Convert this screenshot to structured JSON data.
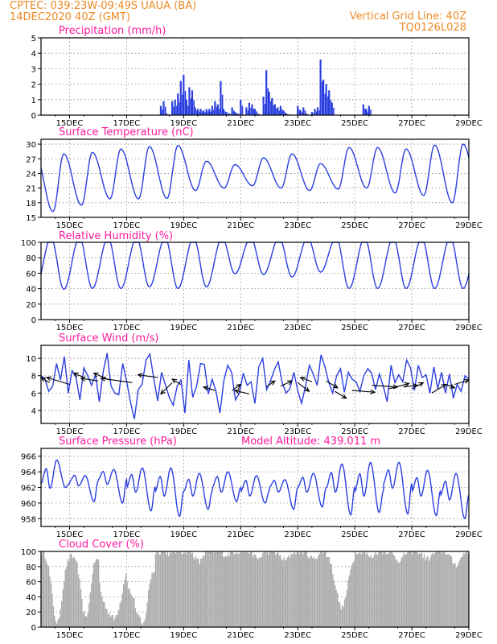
{
  "header": {
    "line1_left": "CPTEC:   039:23W-09:49S  UAUA (BA)",
    "line2_left": "14DEC2020 40Z (GMT)",
    "line1_right": "Vertical Grid Line: 40Z",
    "line2_right": "TQ0126L028"
  },
  "colors": {
    "line": "#2b3fe0",
    "bar": "#2b3fe0",
    "cloud": "#aaaaaa",
    "header": "#ee8a25",
    "title": "#ff1a9e"
  },
  "x_tick_labels": [
    "15DEC",
    "17DEC",
    "19DEC",
    "21DEC",
    "23DEC",
    "25DEC",
    "27DEC",
    "29DEC"
  ],
  "chart_data": [
    {
      "id": "precip",
      "type": "bar",
      "title": "Precipitation (mm/h)",
      "xrange": [
        14.0,
        29.0
      ],
      "ylim": [
        0,
        5
      ],
      "yticks": [
        "0",
        "1",
        "2",
        "3",
        "4",
        "5"
      ],
      "grid": true,
      "x": [
        18.2,
        18.3,
        18.4,
        18.6,
        18.7,
        18.8,
        18.9,
        19.0,
        19.1,
        19.2,
        19.3,
        19.4,
        19.5,
        19.6,
        19.7,
        19.8,
        19.9,
        20.0,
        20.1,
        20.2,
        20.3,
        20.4,
        20.5,
        20.6,
        20.7,
        20.8,
        20.9,
        21.0,
        21.2,
        21.3,
        21.4,
        21.5,
        21.6,
        21.8,
        21.9,
        22.0,
        22.1,
        22.2,
        22.3,
        22.4,
        22.5,
        22.6,
        23.0,
        23.1,
        23.2,
        23.3,
        23.5,
        23.6,
        23.7,
        23.8,
        23.9,
        24.0,
        24.1,
        24.2,
        25.3,
        25.4,
        25.5
      ],
      "values": [
        0.6,
        0.9,
        0.1,
        0.9,
        1.0,
        1.4,
        2.2,
        2.6,
        1.0,
        1.8,
        1.6,
        0.5,
        0.4,
        0.4,
        0.3,
        0.4,
        0.4,
        0.6,
        0.9,
        0.7,
        2.2,
        0.4,
        0.2,
        0.1,
        0.5,
        0.2,
        0.1,
        1.0,
        0.5,
        0.8,
        0.7,
        0.4,
        0.1,
        1.2,
        2.9,
        1.5,
        1.1,
        0.7,
        0.5,
        0.6,
        0.3,
        0.1,
        0.6,
        0.3,
        0.5,
        0.1,
        0.2,
        0.4,
        0.5,
        3.6,
        2.3,
        2.0,
        1.6,
        0.8,
        0.7,
        0.4,
        0.6
      ]
    },
    {
      "id": "temp",
      "type": "line",
      "title": "Surface Temperature (nC)",
      "xrange": [
        14.0,
        29.0
      ],
      "ylim": [
        15,
        31
      ],
      "yticks": [
        "15",
        "18",
        "21",
        "24",
        "27",
        "30"
      ],
      "grid": true,
      "max_day": [
        28.0,
        28.3,
        29.0,
        29.5,
        29.7,
        26.5,
        25.8,
        27.2,
        28.0,
        26.0,
        29.3,
        29.3,
        29.0,
        29.8,
        30.0
      ],
      "min_day": [
        16.2,
        17.5,
        18.8,
        18.8,
        18.9,
        20.5,
        21.0,
        21.5,
        21.0,
        20.5,
        20.8,
        21.0,
        20.0,
        19.5,
        18.0
      ]
    },
    {
      "id": "rh",
      "type": "line",
      "title": "Relative Humidity (%)",
      "xrange": [
        14.0,
        29.0
      ],
      "ylim": [
        0,
        100
      ],
      "yticks": [
        "0",
        "20",
        "40",
        "60",
        "80",
        "100"
      ],
      "grid": true,
      "min_day": [
        37,
        38,
        38,
        40,
        38,
        40,
        56,
        55,
        52,
        58,
        38,
        38,
        38,
        38,
        38
      ],
      "max_day": [
        100,
        100,
        100,
        100,
        100,
        100,
        100,
        100,
        100,
        100,
        100,
        100,
        100,
        100,
        100
      ]
    },
    {
      "id": "wind",
      "type": "line",
      "title": "Surface Wind (m/s)",
      "xrange": [
        14.0,
        29.0
      ],
      "ylim": [
        2.5,
        11.5
      ],
      "yticks": [
        "4",
        "6",
        "8",
        "10"
      ],
      "grid": true,
      "speed": [
        8.0,
        7.6,
        6.2,
        6.8,
        9.4,
        7.5,
        10.2,
        6.0,
        8.6,
        7.8,
        5.2,
        8.9,
        8.0,
        6.9,
        8.1,
        5.0,
        8.5,
        10.6,
        6.8,
        6.0,
        5.8,
        9.4,
        7.4,
        5.0,
        3.0,
        6.4,
        7.0,
        9.8,
        10.5,
        7.6,
        5.1,
        8.4,
        6.9,
        5.5,
        4.6,
        6.8,
        7.5,
        3.7,
        9.8,
        5.5,
        6.8,
        9.4,
        9.3,
        5.9,
        7.6,
        6.2,
        3.7,
        7.4,
        9.2,
        8.4,
        5.2,
        6.0,
        8.3,
        6.9,
        7.3,
        4.8,
        9.0,
        10.0,
        6.4,
        7.4,
        8.7,
        9.6,
        7.2,
        6.0,
        6.5,
        8.4,
        6.3,
        4.8,
        6.8,
        9.2,
        8.2,
        6.9,
        10.4,
        9.0,
        7.2,
        6.0,
        8.0,
        8.8,
        6.1,
        8.4,
        7.6,
        7.3,
        6.2,
        8.0,
        8.8,
        8.3,
        6.4,
        8.2,
        6.8,
        5.0,
        9.2,
        7.2,
        8.1,
        7.3,
        9.8,
        8.9,
        6.3,
        9.2,
        7.8,
        8.1,
        6.0,
        9.0,
        6.5,
        8.4,
        6.0,
        8.2,
        5.4,
        7.0,
        6.2,
        8.0,
        7.6
      ],
      "arrows": [
        {
          "x": 14.3,
          "y": 7.2,
          "dx": -0.3,
          "dy": 0.6
        },
        {
          "x": 15.0,
          "y": 7.0,
          "dx": -0.8,
          "dy": 0.8
        },
        {
          "x": 15.5,
          "y": 7.8,
          "dx": -0.35,
          "dy": 0.5
        },
        {
          "x": 16.0,
          "y": 7.4,
          "dx": -0.6,
          "dy": 0.3
        },
        {
          "x": 16.4,
          "y": 7.5,
          "dx": -0.55,
          "dy": 0.8
        },
        {
          "x": 17.2,
          "y": 7.2,
          "dx": -1.1,
          "dy": 0.5
        },
        {
          "x": 18.1,
          "y": 7.8,
          "dx": -0.7,
          "dy": 0.3
        },
        {
          "x": 18.6,
          "y": 7.2,
          "dx": -0.4,
          "dy": -1.3
        },
        {
          "x": 18.9,
          "y": 7.0,
          "dx": -0.3,
          "dy": 0.6
        },
        {
          "x": 20.1,
          "y": 6.3,
          "dx": -0.4,
          "dy": 0.4
        },
        {
          "x": 20.7,
          "y": 6.3,
          "dx": 0.3,
          "dy": 0.7
        },
        {
          "x": 21.3,
          "y": 5.9,
          "dx": -0.5,
          "dy": 0.4
        },
        {
          "x": 21.9,
          "y": 6.7,
          "dx": 0.3,
          "dy": 0.7
        },
        {
          "x": 22.4,
          "y": 6.8,
          "dx": 0.4,
          "dy": 0.6
        },
        {
          "x": 23.0,
          "y": 7.2,
          "dx": 0.4,
          "dy": -1.0
        },
        {
          "x": 23.5,
          "y": 7.3,
          "dx": -0.4,
          "dy": 0.5
        },
        {
          "x": 24.0,
          "y": 7.4,
          "dx": 0.4,
          "dy": -0.8
        },
        {
          "x": 24.3,
          "y": 6.2,
          "dx": 0.4,
          "dy": -0.8
        },
        {
          "x": 24.9,
          "y": 6.3,
          "dx": 0.8,
          "dy": -0.2
        },
        {
          "x": 25.6,
          "y": 6.9,
          "dx": 0.9,
          "dy": -0.2
        },
        {
          "x": 26.2,
          "y": 6.5,
          "dx": 0.7,
          "dy": 0.6
        },
        {
          "x": 26.7,
          "y": 6.7,
          "dx": 0.5,
          "dy": 0.2
        },
        {
          "x": 27.0,
          "y": 6.5,
          "dx": 0.4,
          "dy": 0.7
        },
        {
          "x": 27.7,
          "y": 6.0,
          "dx": 0.5,
          "dy": 1.0
        },
        {
          "x": 28.2,
          "y": 7.0,
          "dx": 0.3,
          "dy": -0.4
        },
        {
          "x": 28.5,
          "y": 7.0,
          "dx": 0.5,
          "dy": 0.5
        }
      ]
    },
    {
      "id": "pressure",
      "type": "line",
      "title": "Surface Pressure (hPa)",
      "annotation": "Model Altitude: 439.011 m",
      "xrange": [
        14.0,
        29.0
      ],
      "ylim": [
        957,
        967
      ],
      "yticks": [
        "958",
        "960",
        "962",
        "964",
        "966"
      ],
      "grid": true,
      "max_day": [
        965.5,
        963.5,
        964.3,
        964.5,
        964.5,
        963.8,
        964.0,
        963.5,
        963.0,
        963.8,
        965.0,
        965.2,
        965.2,
        964.2,
        963.8
      ],
      "min_day": [
        962.0,
        960.2,
        960.0,
        959.0,
        958.3,
        959.2,
        960.2,
        960.0,
        959.2,
        959.5,
        958.5,
        958.8,
        958.6,
        958.4,
        958.0
      ],
      "mid_day": [
        962.5,
        962.8,
        963.0,
        962.0,
        961.5,
        961.5,
        962.0,
        961.5,
        962.0,
        962.0,
        962.0,
        961.5,
        962.5,
        961.5,
        961.0
      ]
    },
    {
      "id": "cloud",
      "type": "bar",
      "title": "Cloud Cover (%)",
      "xrange": [
        14.0,
        29.0
      ],
      "ylim": [
        0,
        100
      ],
      "yticks": [
        "0",
        "20",
        "40",
        "60",
        "80",
        "100"
      ],
      "grid": true,
      "daily_profile": [
        [
          98,
          96,
          85,
          55,
          20,
          0,
          25,
          60,
          85,
          92
        ],
        [
          95,
          92,
          90,
          60,
          25,
          10,
          30,
          70,
          90,
          88
        ],
        [
          70,
          40,
          30,
          20,
          15,
          10,
          20,
          35,
          60,
          80
        ],
        [
          60,
          45,
          40,
          20,
          10,
          0,
          20,
          55,
          75,
          70
        ],
        [
          100,
          100,
          100,
          100,
          98,
          95,
          100,
          100,
          100,
          100
        ],
        [
          100,
          100,
          100,
          95,
          90,
          85,
          95,
          100,
          100,
          100
        ],
        [
          100,
          100,
          100,
          98,
          95,
          96,
          100,
          100,
          100,
          100
        ],
        [
          100,
          100,
          100,
          100,
          95,
          90,
          92,
          98,
          100,
          100
        ],
        [
          100,
          100,
          98,
          95,
          90,
          88,
          92,
          98,
          100,
          100
        ],
        [
          100,
          100,
          100,
          96,
          92,
          90,
          94,
          98,
          100,
          100
        ],
        [
          95,
          90,
          70,
          50,
          30,
          25,
          40,
          65,
          85,
          95
        ],
        [
          100,
          100,
          100,
          98,
          95,
          92,
          96,
          100,
          100,
          100
        ],
        [
          100,
          100,
          100,
          95,
          90,
          88,
          92,
          98,
          100,
          100
        ],
        [
          100,
          100,
          100,
          96,
          92,
          90,
          94,
          98,
          100,
          100
        ],
        [
          100,
          100,
          98,
          92,
          85,
          82,
          88,
          96,
          100,
          100
        ]
      ]
    }
  ]
}
